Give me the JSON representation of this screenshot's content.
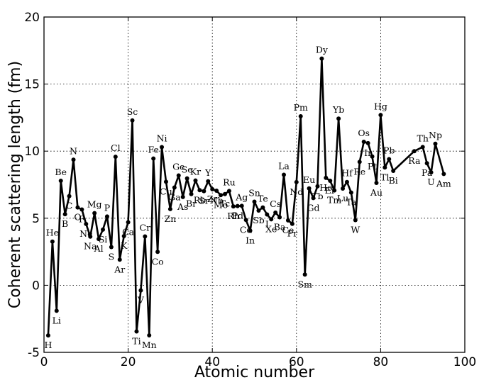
{
  "chart_data": {
    "type": "line",
    "xlabel": "Atomic number",
    "ylabel": "Coherent scattering length (fm)",
    "xlim": [
      0,
      100
    ],
    "ylim": [
      -5,
      20
    ],
    "xticks": [
      "0",
      "20",
      "40",
      "60",
      "80",
      "100"
    ],
    "yticks": [
      "-5",
      "0",
      "5",
      "10",
      "15",
      "20"
    ],
    "grid": true,
    "line_color": "#000000",
    "series": [
      {
        "points": [
          {
            "z": 1,
            "b": -3.74,
            "label": "H"
          },
          {
            "z": 2,
            "b": 3.26,
            "label": "He"
          },
          {
            "z": 3,
            "b": -1.9,
            "label": "Li"
          },
          {
            "z": 4,
            "b": 7.79,
            "label": "Be"
          },
          {
            "z": 5,
            "b": 5.3,
            "label": "B"
          },
          {
            "z": 6,
            "b": 6.65,
            "label": "C"
          },
          {
            "z": 7,
            "b": 9.36,
            "label": "N"
          },
          {
            "z": 8,
            "b": 5.8,
            "label": "O"
          },
          {
            "z": 9,
            "b": 5.65,
            "label": "F"
          },
          {
            "z": 10,
            "b": 4.57,
            "label": "Ne"
          },
          {
            "z": 11,
            "b": 3.63,
            "label": "Na"
          },
          {
            "z": 12,
            "b": 5.38,
            "label": "Mg"
          },
          {
            "z": 13,
            "b": 3.45,
            "label": "Al"
          },
          {
            "z": 14,
            "b": 4.15,
            "label": "Si"
          },
          {
            "z": 15,
            "b": 5.13,
            "label": "P"
          },
          {
            "z": 16,
            "b": 2.85,
            "label": "S"
          },
          {
            "z": 17,
            "b": 9.58,
            "label": "Cl"
          },
          {
            "z": 18,
            "b": 1.91,
            "label": "Ar"
          },
          {
            "z": 19,
            "b": 3.67,
            "label": "K"
          },
          {
            "z": 20,
            "b": 4.7,
            "label": "Ca"
          },
          {
            "z": 21,
            "b": 12.29,
            "label": "Sc"
          },
          {
            "z": 22,
            "b": -3.44,
            "label": "Ti"
          },
          {
            "z": 23,
            "b": -0.38,
            "label": "V"
          },
          {
            "z": 24,
            "b": 3.64,
            "label": "Cr"
          },
          {
            "z": 25,
            "b": -3.73,
            "label": "Mn"
          },
          {
            "z": 26,
            "b": 9.45,
            "label": "Fe"
          },
          {
            "z": 27,
            "b": 2.49,
            "label": "Co"
          },
          {
            "z": 28,
            "b": 10.3,
            "label": "Ni"
          },
          {
            "z": 29,
            "b": 7.72,
            "label": "Cu"
          },
          {
            "z": 30,
            "b": 5.68,
            "label": "Zn"
          },
          {
            "z": 31,
            "b": 7.29,
            "label": "Ga"
          },
          {
            "z": 32,
            "b": 8.19,
            "label": "Ge"
          },
          {
            "z": 33,
            "b": 6.58,
            "label": "As"
          },
          {
            "z": 34,
            "b": 7.97,
            "label": "Se"
          },
          {
            "z": 35,
            "b": 6.8,
            "label": "Br"
          },
          {
            "z": 36,
            "b": 7.81,
            "label": "Kr"
          },
          {
            "z": 37,
            "b": 7.09,
            "label": "Rb"
          },
          {
            "z": 38,
            "b": 7.02,
            "label": "Sr"
          },
          {
            "z": 39,
            "b": 7.75,
            "label": "Y"
          },
          {
            "z": 40,
            "b": 7.16,
            "label": "Zr"
          },
          {
            "z": 41,
            "b": 7.05,
            "label": "Nb"
          },
          {
            "z": 42,
            "b": 6.72,
            "label": "Mo"
          },
          {
            "z": 43,
            "b": 6.8,
            "label": "Tc"
          },
          {
            "z": 44,
            "b": 7.03,
            "label": "Ru"
          },
          {
            "z": 45,
            "b": 5.88,
            "label": "Rh"
          },
          {
            "z": 46,
            "b": 5.91,
            "label": "Pd"
          },
          {
            "z": 47,
            "b": 5.92,
            "label": "Ag"
          },
          {
            "z": 48,
            "b": 4.87,
            "label": "Cd"
          },
          {
            "z": 49,
            "b": 4.07,
            "label": "In"
          },
          {
            "z": 50,
            "b": 6.23,
            "label": "Sn"
          },
          {
            "z": 51,
            "b": 5.57,
            "label": "Sb"
          },
          {
            "z": 52,
            "b": 5.8,
            "label": "Te"
          },
          {
            "z": 53,
            "b": 5.28,
            "label": "I"
          },
          {
            "z": 54,
            "b": 4.92,
            "label": "Xe"
          },
          {
            "z": 55,
            "b": 5.42,
            "label": "Cs"
          },
          {
            "z": 56,
            "b": 5.07,
            "label": "Ba"
          },
          {
            "z": 57,
            "b": 8.24,
            "label": "La"
          },
          {
            "z": 58,
            "b": 4.84,
            "label": "Ce"
          },
          {
            "z": 59,
            "b": 4.58,
            "label": "Pr"
          },
          {
            "z": 60,
            "b": 7.69,
            "label": "Nd"
          },
          {
            "z": 61,
            "b": 12.6,
            "label": "Pm"
          },
          {
            "z": 62,
            "b": 0.8,
            "label": "Sm"
          },
          {
            "z": 63,
            "b": 7.22,
            "label": "Eu"
          },
          {
            "z": 64,
            "b": 6.5,
            "label": "Gd"
          },
          {
            "z": 65,
            "b": 7.38,
            "label": "Tb"
          },
          {
            "z": 66,
            "b": 16.9,
            "label": "Dy"
          },
          {
            "z": 67,
            "b": 8.01,
            "label": "Ho"
          },
          {
            "z": 68,
            "b": 7.79,
            "label": "Er"
          },
          {
            "z": 69,
            "b": 7.07,
            "label": "Tm"
          },
          {
            "z": 70,
            "b": 12.43,
            "label": "Yb"
          },
          {
            "z": 71,
            "b": 7.21,
            "label": "Lu"
          },
          {
            "z": 72,
            "b": 7.7,
            "label": "Hf"
          },
          {
            "z": 73,
            "b": 6.91,
            "label": "Ta"
          },
          {
            "z": 74,
            "b": 4.86,
            "label": "W"
          },
          {
            "z": 75,
            "b": 9.2,
            "label": "Re"
          },
          {
            "z": 76,
            "b": 10.7,
            "label": "Os"
          },
          {
            "z": 77,
            "b": 10.6,
            "label": "Ir"
          },
          {
            "z": 78,
            "b": 9.6,
            "label": "Pt"
          },
          {
            "z": 79,
            "b": 7.63,
            "label": "Au"
          },
          {
            "z": 80,
            "b": 12.69,
            "label": "Hg"
          },
          {
            "z": 81,
            "b": 8.78,
            "label": "Tl"
          },
          {
            "z": 82,
            "b": 9.4,
            "label": "Pb"
          },
          {
            "z": 83,
            "b": 8.53,
            "label": "Bi"
          },
          {
            "z": 88,
            "b": 10.0,
            "label": "Ra"
          },
          {
            "z": 90,
            "b": 10.31,
            "label": "Th"
          },
          {
            "z": 91,
            "b": 9.1,
            "label": "Pa"
          },
          {
            "z": 92,
            "b": 8.42,
            "label": "U"
          },
          {
            "z": 93,
            "b": 10.55,
            "label": "Np"
          },
          {
            "z": 95,
            "b": 8.3,
            "label": "Am"
          }
        ]
      }
    ]
  }
}
